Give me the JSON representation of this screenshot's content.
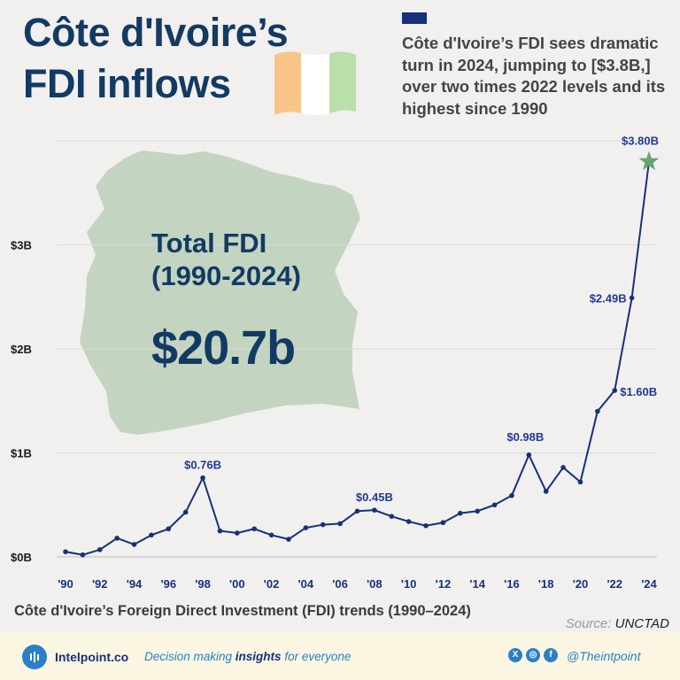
{
  "header": {
    "title_line1": "Côte d'Ivoire’s",
    "title_line2": "FDI inflows",
    "subtitle": "Côte d'Ivoire’s FDI sees dramatic turn in 2024, jumping to [$3.8B,] over two times 2022 levels and its highest since 1990",
    "flag_colors": [
      "#f7c58a",
      "#ffffff",
      "#b9e0a8"
    ]
  },
  "total": {
    "label": "Total FDI\n(1990-2024)",
    "value": "$20.7b",
    "map_color": "#c3d4c0"
  },
  "chart_data": {
    "type": "line",
    "title": "Côte d'Ivoire’s Foreign Direct Investment (FDI) trends (1990–2024)",
    "x": [
      1990,
      1991,
      1992,
      1993,
      1994,
      1995,
      1996,
      1997,
      1998,
      1999,
      2000,
      2001,
      2002,
      2003,
      2004,
      2005,
      2006,
      2007,
      2008,
      2009,
      2010,
      2011,
      2012,
      2013,
      2014,
      2015,
      2016,
      2017,
      2018,
      2019,
      2020,
      2021,
      2022,
      2023,
      2024
    ],
    "values": [
      0.05,
      0.02,
      0.07,
      0.18,
      0.12,
      0.21,
      0.27,
      0.43,
      0.76,
      0.25,
      0.23,
      0.27,
      0.21,
      0.17,
      0.28,
      0.31,
      0.32,
      0.44,
      0.45,
      0.39,
      0.34,
      0.3,
      0.33,
      0.42,
      0.44,
      0.5,
      0.59,
      0.98,
      0.63,
      0.86,
      0.72,
      1.4,
      1.6,
      2.49,
      3.8
    ],
    "ylim": [
      0,
      4.0
    ],
    "x_ticks": [
      {
        "year": 1990,
        "label": "'90"
      },
      {
        "year": 1992,
        "label": "'92"
      },
      {
        "year": 1994,
        "label": "'94"
      },
      {
        "year": 1996,
        "label": "'96"
      },
      {
        "year": 1998,
        "label": "'98"
      },
      {
        "year": 2000,
        "label": "'00"
      },
      {
        "year": 2002,
        "label": "'02"
      },
      {
        "year": 2004,
        "label": "'04"
      },
      {
        "year": 2006,
        "label": "'06"
      },
      {
        "year": 2008,
        "label": "'08"
      },
      {
        "year": 2010,
        "label": "'10"
      },
      {
        "year": 2012,
        "label": "'12"
      },
      {
        "year": 2014,
        "label": "'14"
      },
      {
        "year": 2016,
        "label": "'16"
      },
      {
        "year": 2018,
        "label": "'18"
      },
      {
        "year": 2020,
        "label": "'20"
      },
      {
        "year": 2022,
        "label": "'22"
      },
      {
        "year": 2024,
        "label": "'24"
      }
    ],
    "y_ticks": [
      {
        "value": 0,
        "label": "$0B"
      },
      {
        "value": 1,
        "label": "$1B"
      },
      {
        "value": 2,
        "label": "$2B"
      },
      {
        "value": 3,
        "label": "$3B"
      }
    ],
    "annotations": [
      {
        "year": 1998,
        "label": "$0.76B",
        "side": "above"
      },
      {
        "year": 2008,
        "label": "$0.45B",
        "side": "above"
      },
      {
        "year": 2017,
        "label": "$0.98B",
        "side": "above-left"
      },
      {
        "year": 2022,
        "label": "$1.60B",
        "side": "right"
      },
      {
        "year": 2023,
        "label": "$2.49B",
        "side": "left"
      },
      {
        "year": 2024,
        "label": "$3.80B",
        "side": "above-left"
      }
    ],
    "grid": true,
    "line_color": "#16307c",
    "star_color": "#6aa36f"
  },
  "source": {
    "prefix": "Source: ",
    "name": "UNCTAD"
  },
  "footer": {
    "brand": "Intelpoint.co",
    "tagline_pre": "Decision making ",
    "tagline_bold": "insights",
    "tagline_post": " for everyone",
    "social": [
      {
        "icon": "x-icon",
        "glyph": "X"
      },
      {
        "icon": "instagram-icon",
        "glyph": "◎"
      },
      {
        "icon": "facebook-icon",
        "glyph": "f"
      }
    ],
    "handle": "@Theintpoint"
  }
}
